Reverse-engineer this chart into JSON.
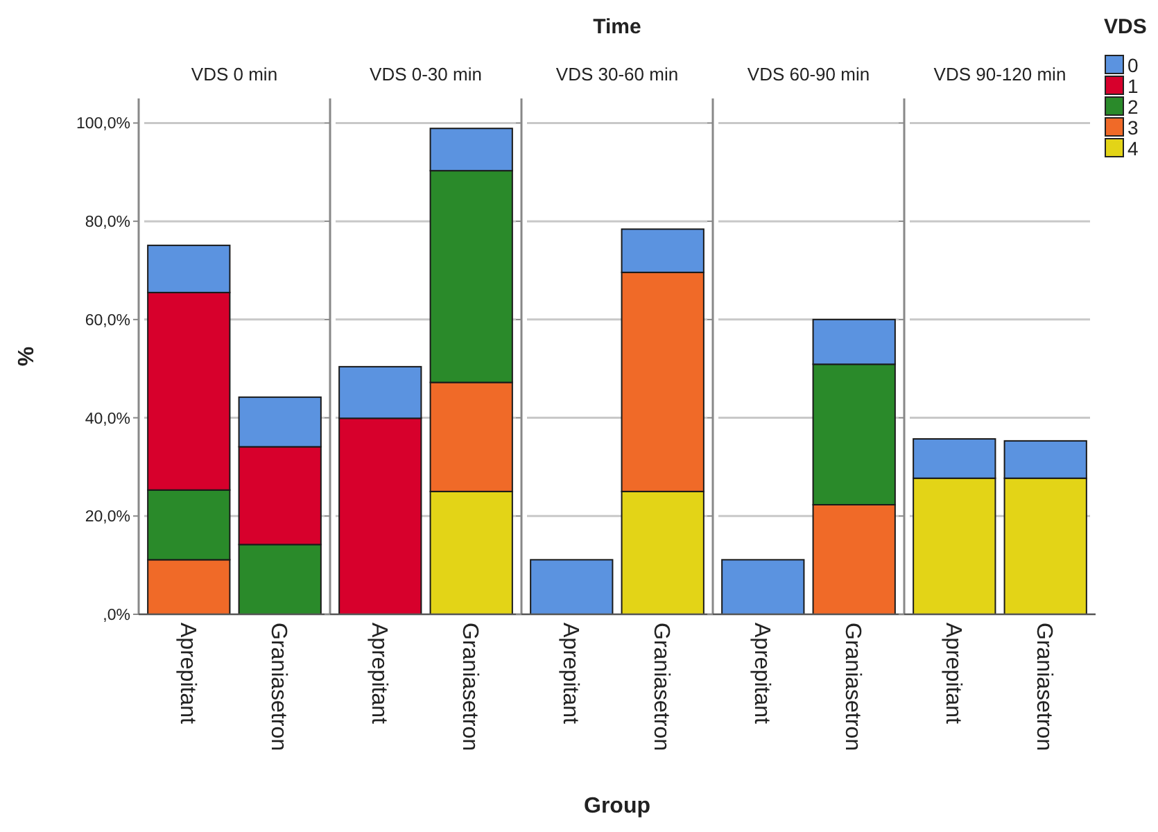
{
  "chart_data": [
    {
      "type": "bar",
      "stacked": true,
      "title": "VDS 0 min",
      "ylabel": "%",
      "grid": "y",
      "categories": [
        "Aprepitant",
        "Graniasetron"
      ],
      "ylim": [
        0,
        105
      ],
      "yticks": [
        {
          "value": 0,
          "label": ",0%"
        },
        {
          "value": 20,
          "label": "20,0%"
        },
        {
          "value": 40,
          "label": "40,0%"
        },
        {
          "value": 60,
          "label": "60,0%"
        },
        {
          "value": 80,
          "label": "80,0%"
        },
        {
          "value": 100,
          "label": "100,0%"
        }
      ],
      "series": [
        {
          "color": "#f06a28",
          "values": [
            11.1,
            null
          ]
        },
        {
          "color": "#2a8a2a",
          "values": [
            14.2,
            14.2
          ]
        },
        {
          "color": "#d7002c",
          "values": [
            40.2,
            19.9
          ]
        },
        {
          "color": "#5b93e0",
          "values": [
            9.6,
            10.1
          ]
        }
      ]
    },
    {
      "type": "bar",
      "stacked": true,
      "title": "VDS 0-30 min",
      "tick_labels": "x",
      "grid": "y",
      "categories": [
        "Aprepitant",
        "Graniasetron"
      ],
      "ylim": [
        0,
        105
      ],
      "yticks": [
        {
          "value": 0,
          "label": null
        },
        {
          "value": 20,
          "label": null
        },
        {
          "value": 40,
          "label": null
        },
        {
          "value": 60,
          "label": null
        },
        {
          "value": 80,
          "label": null
        },
        {
          "value": 100,
          "label": null
        }
      ],
      "series": [
        {
          "color": "#e3d417",
          "values": [
            null,
            25.0
          ]
        },
        {
          "color": "#f06a28",
          "values": [
            null,
            22.2
          ]
        },
        {
          "color": "#2a8a2a",
          "values": [
            null,
            43.1
          ]
        },
        {
          "color": "#d7002c",
          "values": [
            39.9,
            null
          ]
        },
        {
          "color": "#5b93e0",
          "values": [
            10.5,
            8.6
          ]
        }
      ]
    },
    {
      "type": "bar",
      "stacked": true,
      "title": "VDS 30-60 min",
      "xlabel": "Group",
      "annotations": [
        "Time"
      ],
      "tick_labels": "x",
      "grid": "y",
      "categories": [
        "Aprepitant",
        "Graniasetron"
      ],
      "ylim": [
        0,
        105
      ],
      "yticks": [
        {
          "value": 0,
          "label": null
        },
        {
          "value": 20,
          "label": null
        },
        {
          "value": 40,
          "label": null
        },
        {
          "value": 60,
          "label": null
        },
        {
          "value": 80,
          "label": null
        },
        {
          "value": 100,
          "label": null
        }
      ],
      "series": [
        {
          "color": "#e3d417",
          "values": [
            null,
            25.0
          ]
        },
        {
          "color": "#f06a28",
          "values": [
            null,
            44.6
          ]
        },
        {
          "color": "#5b93e0",
          "values": [
            11.1,
            8.8
          ]
        }
      ]
    },
    {
      "type": "bar",
      "stacked": true,
      "title": "VDS 60-90 min",
      "tick_labels": "x",
      "grid": "y",
      "categories": [
        "Aprepitant",
        "Graniasetron"
      ],
      "ylim": [
        0,
        105
      ],
      "yticks": [
        {
          "value": 0,
          "label": null
        },
        {
          "value": 20,
          "label": null
        },
        {
          "value": 40,
          "label": null
        },
        {
          "value": 60,
          "label": null
        },
        {
          "value": 80,
          "label": null
        },
        {
          "value": 100,
          "label": null
        }
      ],
      "series": [
        {
          "color": "#f06a28",
          "values": [
            null,
            22.3
          ]
        },
        {
          "color": "#2a8a2a",
          "values": [
            null,
            28.6
          ]
        },
        {
          "color": "#5b93e0",
          "values": [
            11.1,
            9.1
          ]
        }
      ]
    },
    {
      "type": "bar",
      "stacked": true,
      "title": "VDS 90-120 min",
      "legend": "right",
      "legend_title": "VDS",
      "tick_labels": "x",
      "grid": "y",
      "categories": [
        "Aprepitant",
        "Graniasetron"
      ],
      "ylim": [
        0,
        105
      ],
      "yticks": [
        {
          "value": 0,
          "label": null
        },
        {
          "value": 20,
          "label": null
        },
        {
          "value": 40,
          "label": null
        },
        {
          "value": 60,
          "label": null
        },
        {
          "value": 80,
          "label": null
        },
        {
          "value": 100,
          "label": null
        }
      ],
      "series": [
        {
          "name": "4",
          "color": "#e3d417",
          "values": [
            27.7,
            27.7
          ]
        },
        {
          "name": "3",
          "color": "#f06a28",
          "values": [
            null,
            null
          ]
        },
        {
          "name": "2",
          "color": "#2a8a2a",
          "values": [
            null,
            null
          ]
        },
        {
          "name": "1",
          "color": "#d7002c",
          "values": [
            null,
            null
          ]
        },
        {
          "name": "0",
          "color": "#5b93e0",
          "values": [
            8.0,
            7.6
          ]
        }
      ]
    }
  ]
}
